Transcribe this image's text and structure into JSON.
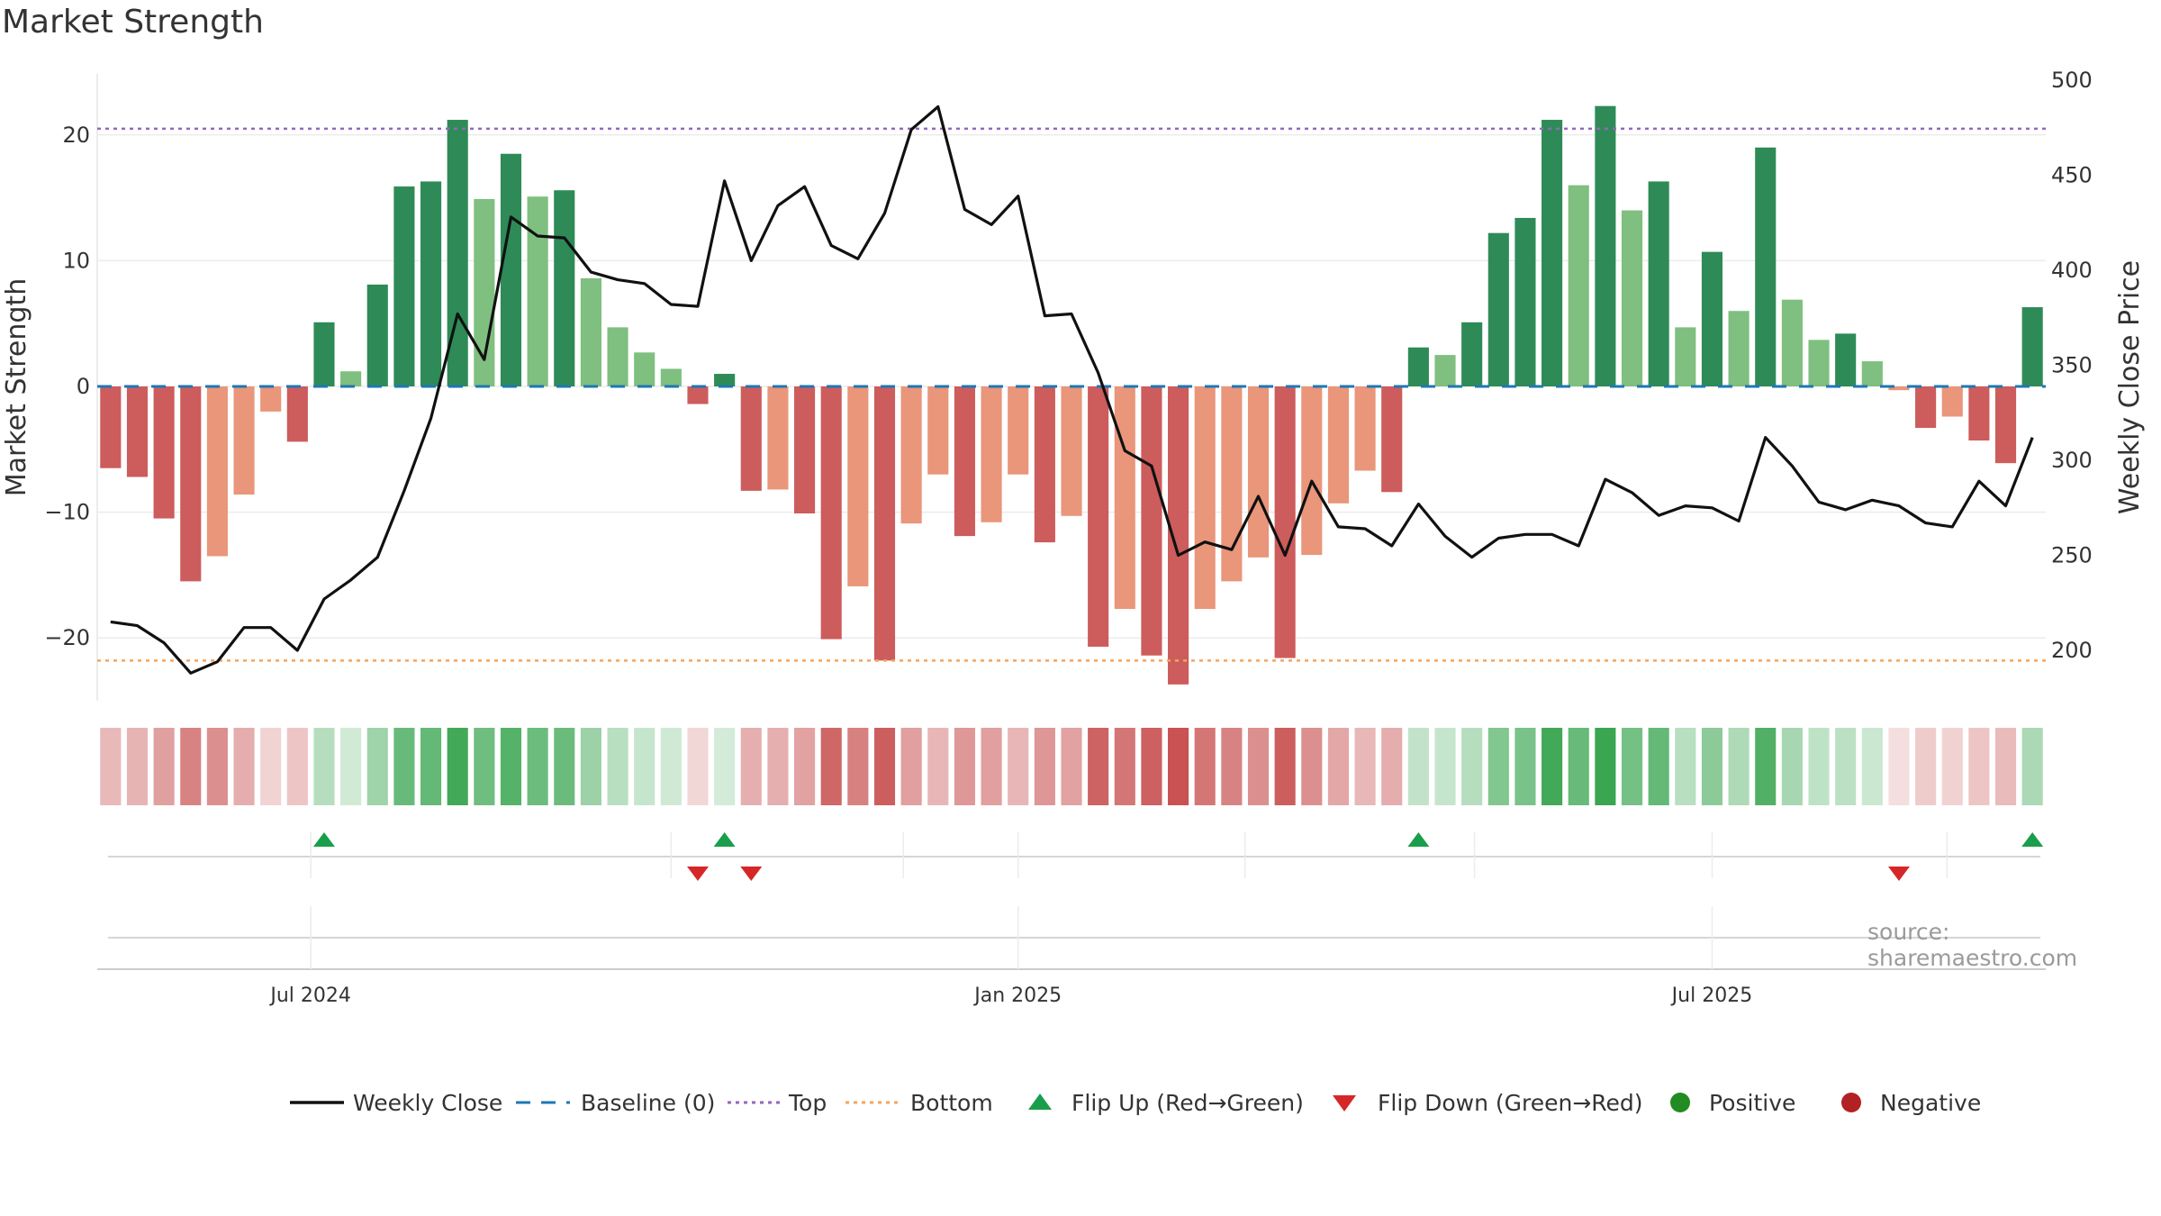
{
  "title": "Market Strength",
  "source": "source: sharemaestro.com",
  "colors": {
    "pos_strong": "#2e8b57",
    "pos_light": "#7fbf7f",
    "neg_strong": "#cd5c5c",
    "neg_light": "#e9967a",
    "price_line": "#111111",
    "baseline": "#1f77b4",
    "top": "#9467bd",
    "bottom": "#f4a460",
    "flip_up": "#1a9e4b",
    "flip_down": "#d62728",
    "positive": "#228b22",
    "negative": "#b22222"
  },
  "chart_data": {
    "type": "bar",
    "title": "Market Strength",
    "ylabel": "Market Strength",
    "y2label": "Weekly Close Price",
    "ylim": [
      -25,
      25
    ],
    "y2lim": [
      180,
      500
    ],
    "yticks": [
      {
        "value": 20,
        "label": "20"
      },
      {
        "value": 10,
        "label": "10"
      },
      {
        "value": 0,
        "label": "0"
      },
      {
        "value": -10,
        "label": "−10"
      },
      {
        "value": -20,
        "label": "−20"
      }
    ],
    "y2ticks": [
      {
        "value": 500,
        "label": "500"
      },
      {
        "value": 450,
        "label": "450"
      },
      {
        "value": 400,
        "label": "400"
      },
      {
        "value": 350,
        "label": "350"
      },
      {
        "value": 300,
        "label": "300"
      },
      {
        "value": 250,
        "label": "250"
      },
      {
        "value": 200,
        "label": "200"
      }
    ],
    "xticks": [
      {
        "week": 8,
        "label": "Jul 2024"
      },
      {
        "week": 34.5,
        "label": "Jan 2025"
      },
      {
        "week": 60.5,
        "label": "Jul 2025"
      }
    ],
    "top_level": 20.5,
    "bottom_level": -21.8,
    "baseline": 0,
    "strength": [
      -6.5,
      -7.2,
      -10.5,
      -15.5,
      -13.5,
      -8.6,
      -2,
      -4.4,
      5.1,
      1.2,
      8.1,
      15.9,
      16.3,
      21.2,
      14.9,
      18.5,
      15.1,
      15.6,
      8.6,
      4.7,
      2.7,
      1.4,
      -1.4,
      1.0,
      -8.3,
      -8.2,
      -10.1,
      -20.1,
      -15.9,
      -21.8,
      -10.9,
      -7,
      -11.9,
      -10.8,
      -7,
      -12.4,
      -10.3,
      -20.7,
      -17.7,
      -21.4,
      -23.7,
      -17.7,
      -15.5,
      -13.6,
      -21.6,
      -13.4,
      -9.3,
      -6.7,
      -8.4,
      3.1,
      2.5,
      5.1,
      12.2,
      13.4,
      21.2,
      16.0,
      22.3,
      14.0,
      16.3,
      4.7,
      10.7,
      6.0,
      19.0,
      6.9,
      3.7,
      4.2,
      2.0,
      -0.3,
      -3.3,
      -2.4,
      -4.3,
      -6.1,
      6.3
    ],
    "strong_flags": [
      1,
      1,
      1,
      1,
      0,
      0,
      0,
      1,
      1,
      0,
      1,
      1,
      1,
      1,
      0,
      1,
      0,
      1,
      0,
      0,
      0,
      0,
      1,
      1,
      1,
      0,
      1,
      1,
      0,
      1,
      0,
      0,
      1,
      0,
      0,
      1,
      0,
      1,
      0,
      1,
      1,
      0,
      0,
      0,
      1,
      0,
      0,
      0,
      1,
      1,
      0,
      1,
      1,
      1,
      1,
      0,
      1,
      0,
      1,
      0,
      1,
      0,
      1,
      0,
      0,
      1,
      0,
      0,
      1,
      0,
      1,
      1,
      1
    ],
    "price": [
      215,
      213,
      204,
      188,
      194,
      212,
      212,
      200,
      227,
      237,
      249,
      284,
      322,
      377,
      353,
      428,
      418,
      417,
      399,
      395,
      393,
      382,
      381,
      447,
      405,
      434,
      444,
      413,
      406,
      430,
      474,
      486,
      432,
      424,
      439,
      376,
      377,
      346,
      305,
      297,
      250,
      257,
      253,
      281,
      250,
      289,
      265,
      264,
      255,
      277,
      260,
      249,
      259,
      261,
      261,
      255,
      290,
      283,
      271,
      276,
      275,
      268,
      312,
      297,
      278,
      274,
      279,
      276,
      267,
      265,
      289,
      276,
      312
    ],
    "flip_up_weeks": [
      8,
      23,
      49,
      72
    ],
    "flip_down_weeks": [
      22,
      24,
      67
    ],
    "legend": [
      {
        "label": "Weekly Close",
        "marker": "line"
      },
      {
        "label": "Baseline (0)",
        "marker": "dash"
      },
      {
        "label": "Top",
        "marker": "dot-purple"
      },
      {
        "label": "Bottom",
        "marker": "dot-orange"
      },
      {
        "label": "Flip Up (Red→Green)",
        "marker": "tri-up"
      },
      {
        "label": "Flip Down (Green→Red)",
        "marker": "tri-down"
      },
      {
        "label": "Positive",
        "marker": "circle-green"
      },
      {
        "label": "Negative",
        "marker": "circle-red"
      }
    ]
  }
}
